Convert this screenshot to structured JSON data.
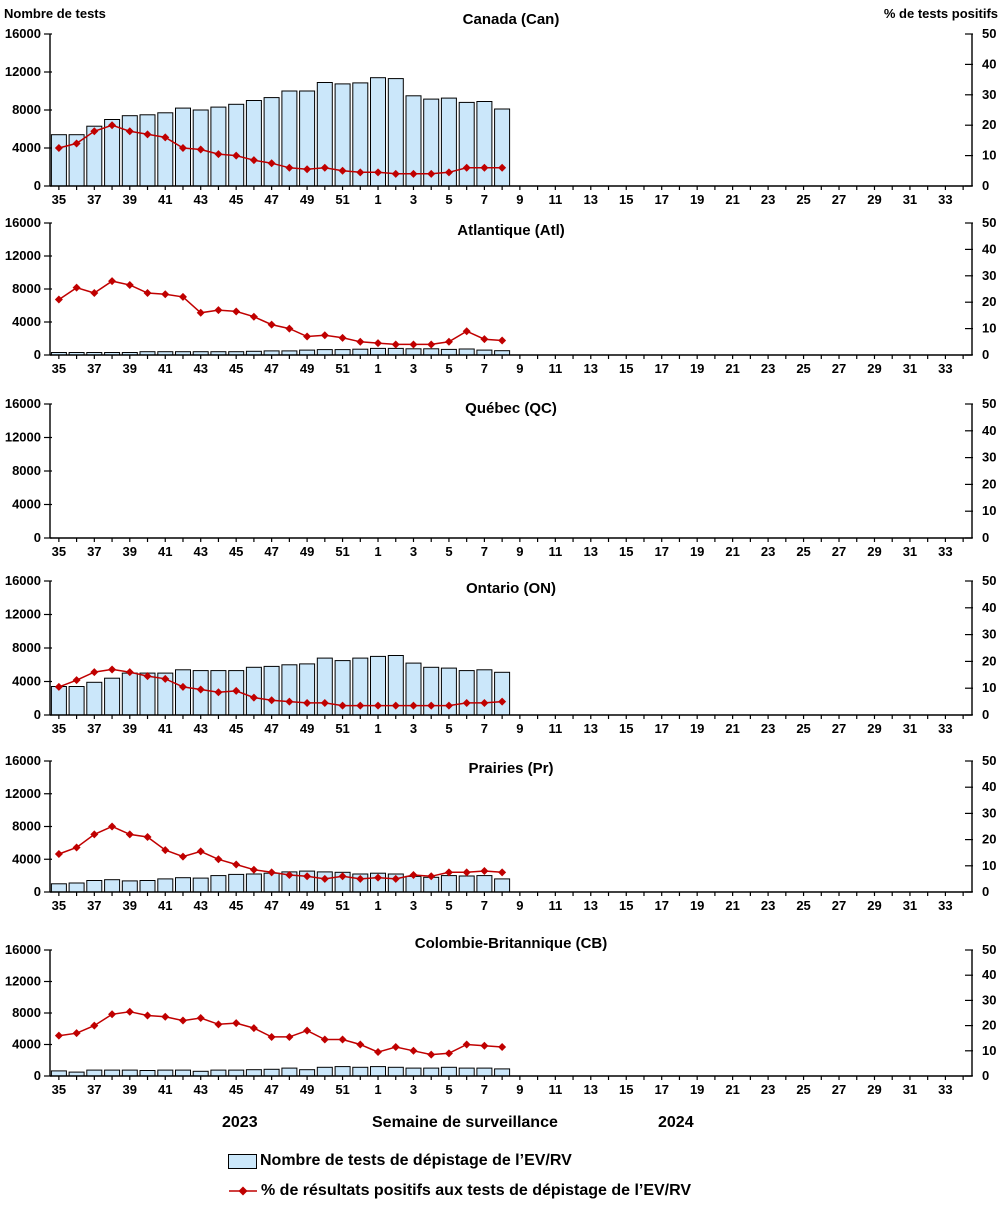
{
  "axis_titles": {
    "left": "Nombre de tests",
    "right": "% de tests positifs"
  },
  "x_axis": {
    "weeks": [
      35,
      36,
      37,
      38,
      39,
      40,
      41,
      42,
      43,
      44,
      45,
      46,
      47,
      48,
      49,
      50,
      51,
      52,
      1,
      2,
      3,
      4,
      5,
      6,
      7,
      8,
      9,
      10,
      11,
      12,
      13,
      14,
      15,
      16,
      17,
      18,
      19,
      20,
      21,
      22,
      23,
      24,
      25,
      26,
      27,
      28,
      29,
      30,
      31,
      32,
      33,
      34
    ],
    "label_every_other_week": true,
    "footer": {
      "year_left": "2023",
      "label": "Semaine de surveillance",
      "year_right": "2024"
    }
  },
  "y_left": {
    "ticks": [
      0,
      4000,
      8000,
      12000,
      16000
    ],
    "max": 16000
  },
  "y_right": {
    "ticks": [
      0,
      10,
      20,
      30,
      40,
      50
    ],
    "max": 50
  },
  "colors": {
    "bar_fill": "#CBE7FA",
    "bar_border": "#000000",
    "line": "#C00000",
    "axis": "#000000"
  },
  "legend": [
    {
      "type": "bar",
      "label": "Nombre de tests de dépistage de l’EV/RV"
    },
    {
      "type": "line",
      "label": "% de résultats positifs aux tests de dépistage de l’EV/RV"
    }
  ],
  "chart_data": [
    {
      "id": "canada",
      "type": "combo-bar-line",
      "title": "Canada (Can)",
      "note": "data for surveillance weeks 35/2023 through 8/2024; weeks 9-34/2024 empty",
      "tests": [
        5400,
        5400,
        6300,
        7000,
        7400,
        7500,
        7700,
        8200,
        8000,
        8300,
        8600,
        9000,
        9300,
        10000,
        10000,
        10900,
        10750,
        10850,
        11400,
        11300,
        9500,
        9150,
        9250,
        8800,
        8900,
        8100
      ],
      "pct_positive": [
        12.5,
        14,
        18,
        20,
        18,
        17,
        16,
        12.5,
        12,
        10.5,
        10,
        8.5,
        7.5,
        6,
        5.5,
        6,
        5,
        4.5,
        4.5,
        4,
        4,
        4,
        4.5,
        6,
        6,
        6
      ]
    },
    {
      "id": "atlantique",
      "type": "combo-bar-line",
      "title": "Atlantique (Atl)",
      "tests": [
        300,
        300,
        300,
        300,
        300,
        400,
        400,
        400,
        400,
        400,
        400,
        450,
        500,
        500,
        600,
        650,
        650,
        700,
        800,
        800,
        750,
        750,
        680,
        730,
        600,
        520
      ],
      "pct_positive": [
        21,
        25.5,
        23.5,
        28,
        26.5,
        23.5,
        23,
        22,
        16,
        17,
        16.5,
        14.5,
        11.5,
        10,
        7,
        7.5,
        6.5,
        5,
        4.5,
        4,
        4,
        4,
        5,
        9,
        6,
        5.5
      ]
    },
    {
      "id": "quebec",
      "type": "combo-bar-line",
      "title": "Québec (QC)",
      "note": "no data reported",
      "tests": [],
      "pct_positive": []
    },
    {
      "id": "ontario",
      "type": "combo-bar-line",
      "title": "Ontario (ON)",
      "tests": [
        3400,
        3400,
        3900,
        4400,
        5000,
        5000,
        5000,
        5400,
        5300,
        5300,
        5300,
        5700,
        5800,
        6000,
        6100,
        6800,
        6500,
        6800,
        7000,
        7100,
        6200,
        5700,
        5600,
        5300,
        5400,
        5100
      ],
      "pct_positive": [
        10.5,
        13,
        16,
        17,
        16,
        14.5,
        13.5,
        10.5,
        9.5,
        8.5,
        9,
        6.5,
        5.5,
        5,
        4.5,
        4.5,
        3.5,
        3.5,
        3.5,
        3.5,
        3.5,
        3.5,
        3.5,
        4.5,
        4.5,
        5
      ]
    },
    {
      "id": "prairies",
      "type": "combo-bar-line",
      "title": "Prairies (Pr)",
      "tests": [
        1000,
        1100,
        1400,
        1500,
        1350,
        1400,
        1600,
        1750,
        1700,
        2000,
        2150,
        2200,
        2300,
        2450,
        2550,
        2450,
        2400,
        2200,
        2300,
        2200,
        1900,
        1800,
        2000,
        1950,
        2000,
        1600
      ],
      "pct_positive": [
        14.5,
        17,
        22,
        25,
        22,
        21,
        16,
        13.5,
        15.5,
        12.5,
        10.5,
        8.5,
        7.5,
        6.5,
        6,
        5,
        6,
        5,
        5.5,
        5,
        6.5,
        6,
        7.5,
        7.5,
        8,
        7.5
      ]
    },
    {
      "id": "colombie-britannique",
      "type": "combo-bar-line",
      "title": "Colombie-Britannique (CB)",
      "tests": [
        650,
        500,
        750,
        750,
        750,
        700,
        750,
        750,
        600,
        750,
        750,
        800,
        850,
        1000,
        800,
        1100,
        1200,
        1100,
        1200,
        1100,
        1000,
        1000,
        1100,
        1000,
        1000,
        900
      ],
      "pct_positive": [
        16,
        17,
        20,
        24.5,
        25.5,
        24,
        23.5,
        22,
        23,
        20.5,
        21,
        19,
        15.5,
        15.5,
        18,
        14.5,
        14.5,
        12.5,
        9.5,
        11.5,
        10,
        8.5,
        9,
        12.5,
        12,
        11.5
      ]
    }
  ]
}
